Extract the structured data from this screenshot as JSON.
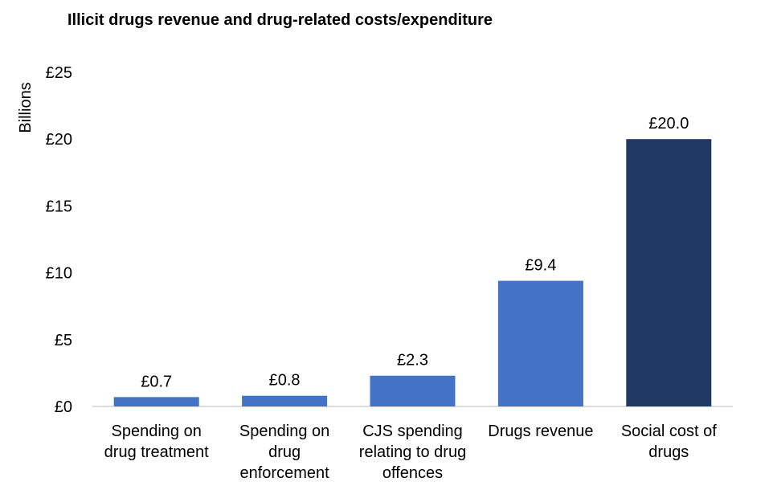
{
  "chart_data": {
    "type": "bar",
    "title": "Illicit drugs revenue and drug-related costs/expenditure",
    "ylabel": "Billions",
    "xlabel": "",
    "ylim": [
      0,
      25
    ],
    "yticks": [
      0,
      5,
      10,
      15,
      20,
      25
    ],
    "ytick_labels": [
      "£0",
      "£5",
      "£10",
      "£15",
      "£20",
      "£25"
    ],
    "categories": [
      [
        "Spending on",
        "drug treatment"
      ],
      [
        "Spending on",
        "drug",
        "enforcement"
      ],
      [
        "CJS spending",
        "relating to drug",
        "offences"
      ],
      [
        "Drugs revenue"
      ],
      [
        "Social cost of",
        "drugs"
      ]
    ],
    "values": [
      0.7,
      0.8,
      2.3,
      9.4,
      20.0
    ],
    "value_labels": [
      "£0.7",
      "£0.8",
      "£2.3",
      "£9.4",
      "£20.0"
    ],
    "bar_colors": [
      "#4472c4",
      "#4472c4",
      "#4472c4",
      "#4472c4",
      "#203864"
    ],
    "grid": false,
    "legend": "none"
  }
}
